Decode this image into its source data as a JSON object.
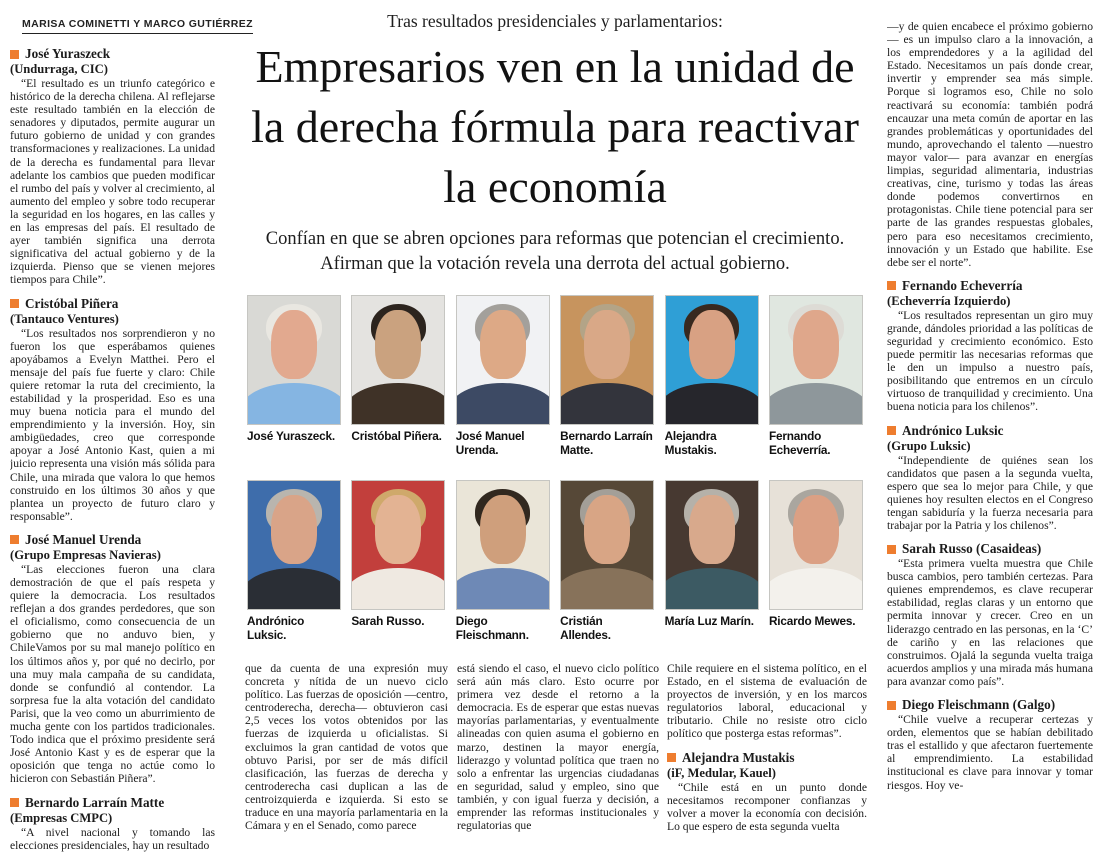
{
  "colors": {
    "bullet_orange": "#ee7d2f",
    "text": "#1b1b1b",
    "background": "#ffffff"
  },
  "byline": "MARISA COMINETTI Y MARCO GUTIÉRREZ",
  "headline": {
    "kicker": "Tras resultados presidenciales y parlamentarios:",
    "title": "Empresarios ven en la unidad de la derecha fórmula para reactivar la economía",
    "deck": "Confían en que se abren opciones para reformas que potencian el crecimiento. Afirman que la votación revela una derrota del actual gobierno."
  },
  "left_column": {
    "sections": [
      {
        "name": "José Yuraszeck",
        "org": "(Undurraga, CIC)",
        "quote": "“El resultado es un triunfo categórico e histórico de la derecha chilena. Al reflejarse este resultado también en la elección de senadores y diputados, permite augurar un futuro gobierno de unidad y con grandes transformaciones y realizaciones. La unidad de la derecha es fundamental para llevar adelante los cambios que pueden modificar el rumbo del país y volver al crecimiento, al aumento del empleo y sobre todo recuperar la seguridad en los hogares, en las calles y en las empresas del país. El resultado de ayer también significa una derrota significativa del actual gobierno y de la izquierda. Pienso que se vienen mejores tiempos para Chile”."
      },
      {
        "name": "Cristóbal Piñera",
        "org": "(Tantauco Ventures)",
        "quote": "“Los resultados nos sorprendieron y no fueron los que esperábamos quienes apoyábamos a Evelyn Matthei. Pero el mensaje del país fue fuerte y claro: Chile quiere retomar la ruta del crecimiento, la estabilidad y la prosperidad. Eso es una muy buena noticia para el mundo del emprendimiento y la inversión. Hoy, sin ambigüedades, creo que corresponde apoyar a José Antonio Kast, quien a mi juicio representa una visión más sólida para Chile, una mirada que valora lo que hemos construido en los últimos 30 años y que plantea un proyecto de futuro claro y responsable”."
      },
      {
        "name": "José Manuel Urenda",
        "org": "(Grupo Empresas Navieras)",
        "quote": "“Las elecciones fueron una clara demostración de que el país respeta y quiere la democracia. Los resultados reflejan a dos grandes perdedores, que son el oficialismo, como consecuencia de un gobierno que no anduvo bien, y ChileVamos por su mal manejo político en los últimos años y, por qué no decirlo, por una muy mala campaña de su candidata, donde se confundió al contendor. La sorpresa fue la alta votación del candidato Parisi, que la veo como un aburrimiento de mucha gente con los partidos tradicionales. Todo indica que el próximo presidente será José Antonio Kast y es de esperar que la oposición que tenga no actúe como lo hicieron con Sebastián Piñera”."
      },
      {
        "name": "Bernardo Larraín Matte",
        "org": "(Empresas CMPC)",
        "quote": "“A nivel nacional y tomando las elecciones presidenciales, hay un resultado"
      }
    ]
  },
  "photos": [
    {
      "caption": "José Yuraszeck.",
      "style": "--bg:#d9d9d5;--hair:#e9e7e1;--skin:#e2a98f;--coat:#85b5e2"
    },
    {
      "caption": "Cristóbal Piñera.",
      "style": "--bg:#e4e3e0;--hair:#2c241e;--skin:#caa27f;--coat:#3f3227"
    },
    {
      "caption": "José Manuel Urenda.",
      "style": "--bg:#f1f2f4;--hair:#a3a09b;--skin:#dda986;--coat:#3d4a64"
    },
    {
      "caption": "Bernardo Larraín Matte.",
      "style": "--bg:#c7945e;--hair:#b3a487;--skin:#d9a887;--coat:#33343c"
    },
    {
      "caption": "Alejandra Mustakis.",
      "style": "--bg:#2f9fd6;--hair:#38291f;--skin:#d8a183;--coat:#26262c"
    },
    {
      "caption": "Fernando Echeverría.",
      "style": "--bg:#e0e7e0;--hair:#dddbd5;--skin:#dfa78b;--coat:#8e979b"
    },
    {
      "caption": "Andrónico Luksic.",
      "style": "--bg:#3e6dab;--hair:#b9b5ae;--skin:#d9a488;--coat:#2a2e35"
    },
    {
      "caption": "Sarah Russo.",
      "style": "--bg:#c23f3c;--hair:#cfa96b;--skin:#e3b393;--coat:#efe9e1"
    },
    {
      "caption": "Diego Fleischmann.",
      "style": "--bg:#eae5d8;--hair:#31281f;--skin:#cf9f7c;--coat:#6e89b6"
    },
    {
      "caption": "Cristián Allendes.",
      "style": "--bg:#564837;--hair:#a39f98;--skin:#d8a585;--coat:#87725a"
    },
    {
      "caption": "María Luz Marín.",
      "style": "--bg:#473931;--hair:#b5b1a9;--skin:#d8a98c;--coat:#3c5a63"
    },
    {
      "caption": "Ricardo Mewes.",
      "style": "--bg:#e7e1d8;--hair:#aaa69f;--skin:#dba084;--coat:#f3f1ec"
    }
  ],
  "bottom_columns": {
    "col1": "que da cuenta de una expresión muy concreta y nítida de un nuevo ciclo político. Las fuerzas de oposición —centro, centroderecha, derecha— obtuvieron casi 2,5 veces los votos obtenidos por las fuerzas de izquierda u oficialistas. Si excluimos la gran cantidad de votos que obtuvo Parisi, por ser de más difícil clasificación, las fuerzas de derecha y centroderecha casi duplican a las de centroizquierda e izquierda. Si esto se traduce en una mayoría parlamentaria en la Cámara y en el Senado, como parece",
    "col2": "está siendo el caso, el nuevo ciclo político será aún más claro. Esto ocurre por primera vez desde el retorno a la democracia. Es de esperar que estas nuevas mayorías parlamentarias, y eventualmente alineadas con quien asuma el gobierno en marzo, destinen la mayor energía, liderazgo y voluntad política que traen no solo a enfrentar las urgencias ciudadanas en seguridad, salud y empleo, sino que también, y con igual fuerza y decisión, a emprender las reformas institucionales y regulatorias que",
    "col3_continuation": "Chile requiere en el sistema político, en el Estado, en el sistema de evaluación de proyectos de inversión, y en los marcos regulatorios laboral, educacional y tributario. Chile no resiste otro ciclo político que posterga estas reformas”.",
    "col3_section": {
      "name": "Alejandra Mustakis",
      "org": "(iF, Medular, Kauel)",
      "quote": "“Chile está en un punto donde necesitamos recomponer confianzas y volver a mover la economía con decisión. Lo que espero de esta segunda vuelta"
    }
  },
  "right_column": {
    "continuation": "—y de quien encabece el próximo gobierno— es un impulso claro a la innovación, a los emprendedores y a la agilidad del Estado. Necesitamos un país donde crear, invertir y emprender sea más simple. Porque si logramos eso, Chile no solo reactivará su economía: también podrá encauzar una meta común de aportar en las grandes problemáticas y oportunidades del mundo, aprovechando el talento —nuestro mayor valor— para avanzar en energías limpias, seguridad alimentaria, industrias creativas, cine, turismo y todas las áreas donde podemos convertirnos en protagonistas. Chile tiene potencial para ser parte de las grandes respuestas globales, pero para eso necesitamos crecimiento, innovación y un Estado que habilite. Ese debe ser el norte”.",
    "sections": [
      {
        "name": "Fernando Echeverría",
        "org": "(Echeverría Izquierdo)",
        "quote": "“Los resultados representan un giro muy grande, dándoles prioridad a las políticas de seguridad y crecimiento económico. Esto puede permitir las necesarias reformas que le den un impulso a nuestro país, posibilitando que entremos en un círculo virtuoso de tranquilidad y crecimiento. Una buena noticia para los chilenos”."
      },
      {
        "name": "Andrónico Luksic",
        "org": "(Grupo Luksic)",
        "quote": "“Independiente de quiénes sean los candidatos que pasen a la segunda vuelta, espero que sea lo mejor para Chile, y que quienes hoy resulten electos en el Congreso tengan sabiduría y la fuerza necesaria para trabajar por la Patria y los chilenos”."
      },
      {
        "name": "Sarah Russo (Casaideas)",
        "org": "",
        "quote": "“Esta primera vuelta muestra que Chile busca cambios, pero también certezas. Para quienes emprendemos, es clave recuperar estabilidad, reglas claras y un entorno que permita innovar y crecer. Creo en un liderazgo centrado en las personas, en la ‘C’ de cariño y en las relaciones que construimos. Ojalá la segunda vuelta traiga acuerdos amplios y una mirada más humana para avanzar como país”."
      },
      {
        "name": "Diego Fleischmann (Galgo)",
        "org": "",
        "quote": "“Chile vuelve a recuperar certezas y orden, elementos que se habían debilitado tras el estallido y que afectaron fuertemente al emprendimiento. La estabilidad institucional es clave para innovar y tomar riesgos. Hoy ve-"
      }
    ]
  }
}
